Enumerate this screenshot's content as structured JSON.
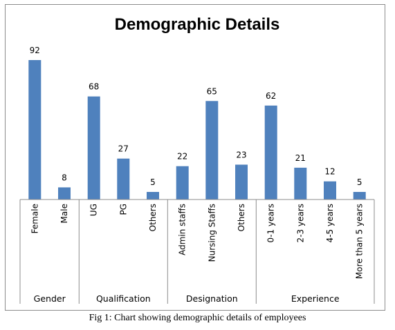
{
  "caption": "Fig 1: Chart showing demographic details of employees",
  "chart_data": {
    "type": "bar",
    "title": "Demographic Details",
    "bar_color": "#4f81bd",
    "groups": [
      {
        "name": "Gender",
        "categories": [
          "Female",
          "Male"
        ],
        "values": [
          92,
          8
        ]
      },
      {
        "name": "Qualification",
        "categories": [
          "UG",
          "PG",
          "Others"
        ],
        "values": [
          68,
          27,
          5
        ]
      },
      {
        "name": "Designation",
        "categories": [
          "Admin staffs",
          "Nursing Staffs",
          "Others"
        ],
        "values": [
          22,
          65,
          23
        ]
      },
      {
        "name": "Experience",
        "categories": [
          "0-1 years",
          "2-3 years",
          "4-5 years",
          "More than 5 years"
        ],
        "values": [
          62,
          21,
          12,
          5
        ]
      }
    ],
    "categories": [
      "Female",
      "Male",
      "UG",
      "PG",
      "Others",
      "Admin staffs",
      "Nursing Staffs",
      "Others",
      "0-1 years",
      "2-3 years",
      "4-5 years",
      "More than 5 years"
    ],
    "values": [
      92,
      8,
      68,
      27,
      5,
      22,
      65,
      23,
      62,
      21,
      12,
      5
    ],
    "ylim": [
      0,
      92
    ],
    "grid": false,
    "legend": "none",
    "data_labels": true
  }
}
